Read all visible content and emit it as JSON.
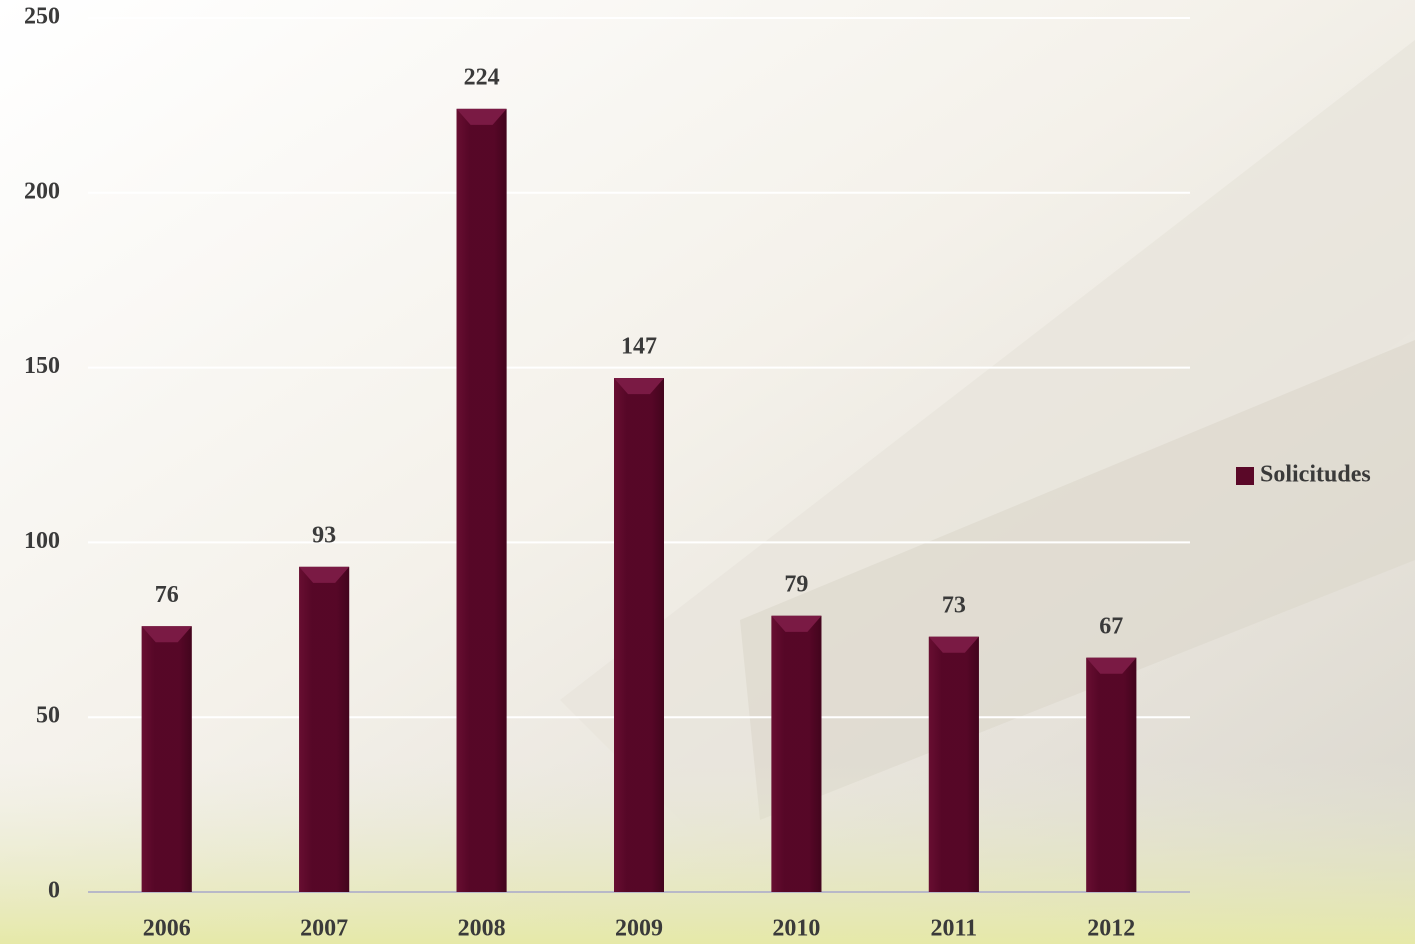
{
  "chart_data": {
    "type": "bar",
    "categories": [
      "2006",
      "2007",
      "2008",
      "2009",
      "2010",
      "2011",
      "2012"
    ],
    "series": [
      {
        "name": "Solicitudes",
        "color": "#5a0828",
        "values": [
          76,
          93,
          224,
          147,
          79,
          73,
          67
        ]
      }
    ],
    "ylim": [
      0,
      250
    ],
    "yticks": [
      0,
      50,
      100,
      150,
      200,
      250
    ],
    "grid": true,
    "legend": "right"
  }
}
